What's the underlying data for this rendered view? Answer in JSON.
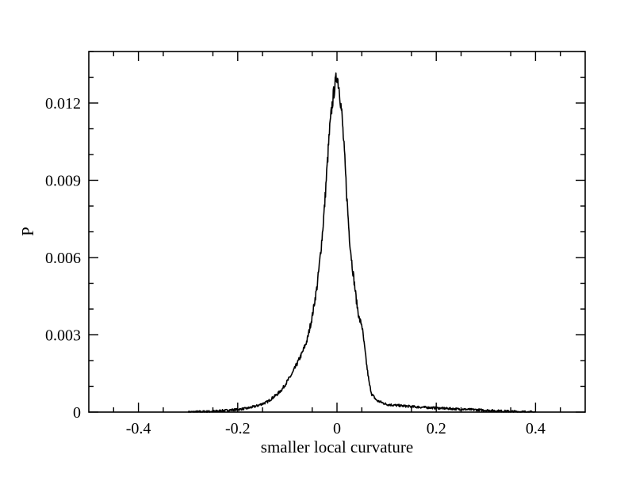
{
  "chart_data": {
    "type": "line",
    "title": "",
    "xlabel": "smaller local curvature",
    "ylabel": "P",
    "xlim": [
      -0.5,
      0.5
    ],
    "ylim": [
      0,
      0.014
    ],
    "x_ticks": [
      -0.4,
      -0.2,
      0,
      0.2,
      0.4
    ],
    "x_tick_labels": [
      "-0.4",
      "-0.2",
      "0",
      "0.2",
      "0.4"
    ],
    "y_ticks": [
      0,
      0.003,
      0.006,
      0.009,
      0.012
    ],
    "y_tick_labels": [
      "0",
      "0.003",
      "0.006",
      "0.009",
      "0.012"
    ],
    "grid": false,
    "legend": false,
    "series": [
      {
        "x": [
          -0.3,
          -0.25,
          -0.2,
          -0.18,
          -0.16,
          -0.14,
          -0.12,
          -0.11,
          -0.1,
          -0.09,
          -0.08,
          -0.07,
          -0.06,
          -0.05,
          -0.04,
          -0.035,
          -0.03,
          -0.025,
          -0.02,
          -0.015,
          -0.01,
          -0.005,
          0,
          0.005,
          0.01,
          0.015,
          0.02,
          0.025,
          0.03,
          0.035,
          0.04,
          0.045,
          0.05,
          0.055,
          0.06,
          0.065,
          0.07,
          0.08,
          0.1,
          0.12,
          0.14,
          0.16,
          0.2,
          0.24,
          0.28,
          0.32,
          0.36,
          0.4
        ],
        "y": [
          0.0,
          3e-05,
          0.0001,
          0.00015,
          0.00025,
          0.0004,
          0.0007,
          0.0009,
          0.0012,
          0.0015,
          0.0019,
          0.0023,
          0.0028,
          0.0037,
          0.0049,
          0.0058,
          0.0068,
          0.008,
          0.0095,
          0.0109,
          0.0119,
          0.0126,
          0.0131,
          0.0125,
          0.0115,
          0.01,
          0.0083,
          0.0068,
          0.0058,
          0.005,
          0.0042,
          0.0036,
          0.0034,
          0.0026,
          0.0018,
          0.0011,
          0.0007,
          0.00045,
          0.0003,
          0.00026,
          0.00023,
          0.0002,
          0.00016,
          0.00012,
          9e-05,
          5e-05,
          2e-05,
          0.0
        ]
      }
    ]
  }
}
